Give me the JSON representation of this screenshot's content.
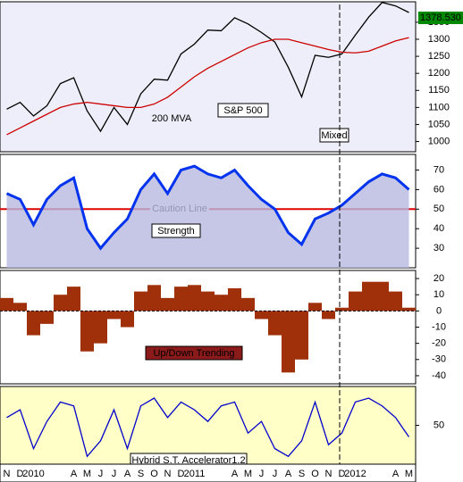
{
  "chart_data": [
    {
      "type": "line",
      "price_tag": "1378.530",
      "annotations": [
        "Mixed"
      ],
      "series": [
        {
          "name": "S&P 500",
          "color": "#000000",
          "values": [
            1095,
            1115,
            1075,
            1105,
            1170,
            1187,
            1090,
            1030,
            1100,
            1050,
            1140,
            1183,
            1180,
            1257,
            1286,
            1327,
            1325,
            1363,
            1345,
            1320,
            1292,
            1218,
            1131,
            1253,
            1247,
            1257,
            1312,
            1365,
            1408,
            1398,
            1378.53
          ]
        },
        {
          "name": "200 MVA",
          "color": "#cc0000",
          "values": [
            1020,
            1040,
            1060,
            1080,
            1100,
            1110,
            1115,
            1110,
            1105,
            1100,
            1100,
            1110,
            1130,
            1160,
            1190,
            1215,
            1235,
            1255,
            1275,
            1290,
            1300,
            1300,
            1290,
            1280,
            1270,
            1262,
            1260,
            1265,
            1280,
            1295,
            1305
          ]
        }
      ],
      "ylim": [
        970,
        1410
      ],
      "yticks": [
        1000,
        1050,
        1100,
        1150,
        1200,
        1250,
        1300,
        1350
      ]
    },
    {
      "type": "area",
      "reference_line": {
        "label": "Caution Line",
        "value": 50
      },
      "series": [
        {
          "name": "Strength",
          "color": "#0033ee",
          "values": [
            58,
            55,
            42,
            55,
            62,
            66,
            40,
            30,
            38,
            45,
            60,
            68,
            58,
            70,
            72,
            68,
            66,
            70,
            62,
            55,
            50,
            38,
            32,
            45,
            48,
            52,
            58,
            64,
            68,
            66,
            60
          ]
        }
      ],
      "ylim": [
        20,
        78
      ],
      "yticks": [
        30,
        40,
        50,
        60,
        70
      ]
    },
    {
      "type": "bar",
      "series": [
        {
          "name": "Up/Down Trending",
          "color": "#a0300a",
          "values": [
            8,
            5,
            -15,
            -8,
            10,
            15,
            -25,
            -20,
            -5,
            -10,
            12,
            16,
            8,
            15,
            16,
            12,
            10,
            14,
            8,
            -5,
            -15,
            -38,
            -30,
            5,
            -5,
            2,
            12,
            18,
            18,
            12,
            2
          ]
        }
      ],
      "ylim": [
        -45,
        25
      ],
      "yticks": [
        20,
        10,
        0,
        -10,
        -20,
        -30,
        -40
      ]
    },
    {
      "type": "line",
      "series": [
        {
          "name": "Hybrid S.T. Accelerator1.2",
          "color": "#0000cc",
          "values": [
            60,
            70,
            20,
            55,
            80,
            75,
            10,
            30,
            70,
            20,
            75,
            85,
            60,
            80,
            70,
            55,
            75,
            80,
            40,
            55,
            20,
            10,
            30,
            80,
            25,
            40,
            80,
            85,
            75,
            60,
            35
          ]
        }
      ],
      "ylim": [
        0,
        100
      ],
      "yticks": [
        50
      ],
      "categories": [
        "N",
        "D",
        "2010",
        null,
        null,
        "A",
        "M",
        "J",
        "J",
        "A",
        "S",
        "O",
        "N",
        "D",
        "2011",
        null,
        null,
        "A",
        "M",
        "J",
        "J",
        "A",
        "S",
        "O",
        "N",
        "D",
        "2012",
        null,
        null,
        "A",
        "M"
      ]
    }
  ]
}
